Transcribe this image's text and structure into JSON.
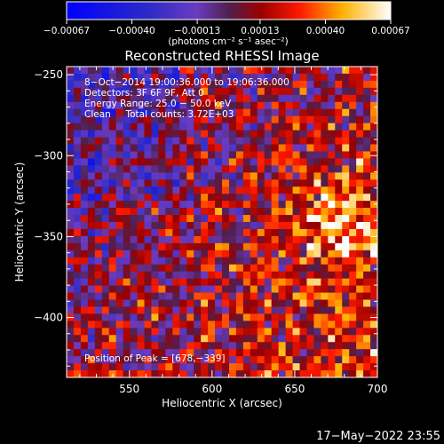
{
  "chart_data": {
    "type": "heatmap",
    "title": "Reconstructed RHESSI Image",
    "xlabel": "Heliocentric X (arcsec)",
    "ylabel": "Heliocentric Y (arcsec)",
    "xlim": [
      512,
      700
    ],
    "ylim": [
      -437,
      -245
    ],
    "x_ticks": [
      550,
      600,
      650,
      700
    ],
    "x_tick_labels": [
      "550",
      "600",
      "650",
      "700"
    ],
    "y_ticks": [
      -250,
      -300,
      -350,
      -400
    ],
    "y_tick_labels": [
      "−250",
      "−300",
      "−350",
      "−400"
    ],
    "colorbar": {
      "range": [
        -0.00067,
        0.00067
      ],
      "tick_values": [
        -0.00067,
        -0.0004,
        -0.00013,
        0.00013,
        0.0004,
        0.00067
      ],
      "tick_labels": [
        "−0.00067",
        "−0.00040",
        "−0.00013",
        "0.00013",
        "0.00040",
        "0.00067"
      ],
      "unit_label": "(photons cm⁻² s⁻¹ asec⁻²)"
    },
    "annotations": [
      "8−Oct−2014 19:00:36.000 to 19:06:36.000",
      "Detectors: 3F 6F 9F, Att 0",
      "Energy Range: 25.0 − 50.0 keV",
      "Clean     Total counts: 3.72E+03"
    ],
    "peak_label": "Position of Peak = [678,−339]",
    "peak": [
      678,
      -339
    ],
    "grid": false
  },
  "footer": {
    "date": "17−May−2022 23:55"
  }
}
